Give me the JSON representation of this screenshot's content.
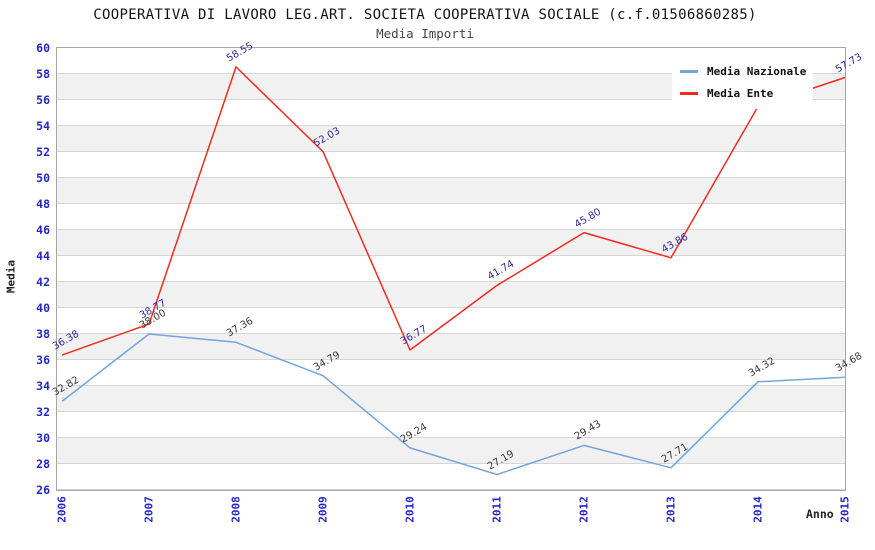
{
  "header": {
    "title": "COOPERATIVA DI LAVORO LEG.ART. SOCIETA COOPERATIVA SOCIALE (c.f.01506860285)",
    "subtitle": "Media Importi"
  },
  "axes": {
    "y_label": "Media",
    "x_label": "Anno",
    "y_ticks": [
      "60",
      "58",
      "56",
      "54",
      "52",
      "50",
      "48",
      "46",
      "44",
      "42",
      "40",
      "38",
      "36",
      "34",
      "32",
      "30",
      "28",
      "26"
    ],
    "x_ticks": [
      "2006",
      "2007",
      "2008",
      "2009",
      "2010",
      "2011",
      "2012",
      "2013",
      "2014",
      "2015"
    ]
  },
  "legend": {
    "items": [
      {
        "label": "Media Nazionale",
        "color": "#73a5dc"
      },
      {
        "label": "Media Ente",
        "color": "#ef2b22"
      }
    ]
  },
  "colors": {
    "axis_text_blue": "#2525cc",
    "grid_line": "#d6d6d6",
    "band_fill": "#f1f1f1",
    "plot_border": "#a6a6a6"
  },
  "chart_data": {
    "type": "line",
    "title": "COOPERATIVA DI LAVORO LEG.ART. SOCIETA COOPERATIVA SOCIALE (c.f.01506860285)",
    "subtitle": "Media Importi",
    "xlabel": "Anno",
    "ylabel": "Media",
    "ylim": [
      26,
      60
    ],
    "y_tick_step": 2,
    "grid": "horizontal-gridlines-with-alternating-bands",
    "legend_position": "top-right-inside",
    "categories": [
      "2006",
      "2007",
      "2008",
      "2009",
      "2010",
      "2011",
      "2012",
      "2013",
      "2014",
      "2015"
    ],
    "series": [
      {
        "name": "Media Nazionale",
        "color": "#73a5dc",
        "label_color": "#3b3b3b",
        "values": [
          32.82,
          38.0,
          37.36,
          34.79,
          29.24,
          27.19,
          29.43,
          27.71,
          34.32,
          34.68
        ],
        "labels": [
          "32.82",
          "38.00",
          "37.36",
          "34.79",
          "29.24",
          "27.19",
          "29.43",
          "27.71",
          "34.32",
          "34.68"
        ]
      },
      {
        "name": "Media Ente",
        "color": "#ef2b22",
        "label_color": "#2c2c9c",
        "values": [
          36.38,
          38.77,
          58.55,
          52.03,
          36.77,
          41.74,
          45.8,
          43.86,
          55.5,
          57.73
        ],
        "labels": [
          "36.38",
          "38.77",
          "58.55",
          "52.03",
          "36.77",
          "41.74",
          "45.80",
          "43.86",
          null,
          "57.73"
        ]
      }
    ]
  }
}
